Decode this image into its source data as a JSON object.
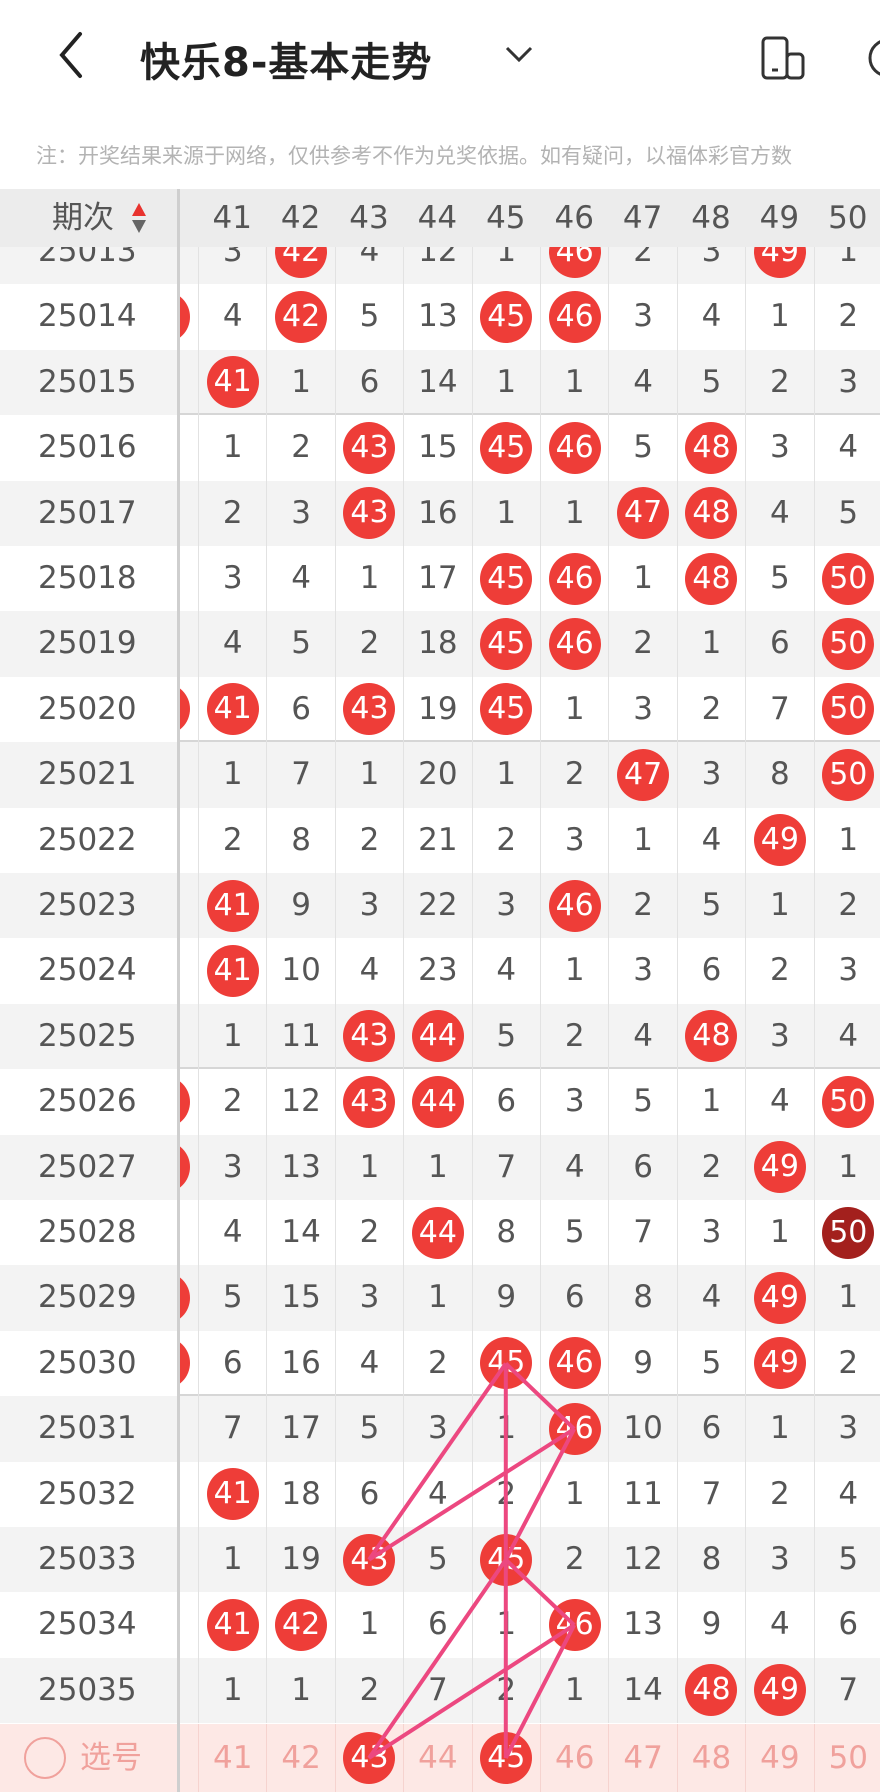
{
  "header": {
    "title": "快乐8-基本走势",
    "back_icon": "chevron-left-icon",
    "dropdown_icon": "chevron-down-icon",
    "device_icon": "phone-rotate-icon"
  },
  "notice": "注：开奖结果来源于网络，仅供参考不作为兑奖依据。如有疑问，以福体彩官方数",
  "table": {
    "period_label": "期次",
    "columns": [
      "41",
      "42",
      "43",
      "44",
      "45",
      "46",
      "47",
      "48",
      "49",
      "50"
    ],
    "rows": [
      {
        "period": "25013",
        "prev": false,
        "cells": [
          "3",
          "*42",
          "4",
          "12",
          "1",
          "*46",
          "2",
          "3",
          "*49",
          "1"
        ]
      },
      {
        "period": "25014",
        "prev": true,
        "cells": [
          "4",
          "*42",
          "5",
          "13",
          "*45",
          "*46",
          "3",
          "4",
          "1",
          "2"
        ]
      },
      {
        "period": "25015",
        "prev": false,
        "cells": [
          "*41",
          "1",
          "6",
          "14",
          "1",
          "1",
          "4",
          "5",
          "2",
          "3"
        ]
      },
      {
        "period": "25016",
        "prev": false,
        "cells": [
          "1",
          "2",
          "*43",
          "15",
          "*45",
          "*46",
          "5",
          "*48",
          "3",
          "4"
        ]
      },
      {
        "period": "25017",
        "prev": false,
        "cells": [
          "2",
          "3",
          "*43",
          "16",
          "1",
          "1",
          "*47",
          "*48",
          "4",
          "5"
        ]
      },
      {
        "period": "25018",
        "prev": false,
        "cells": [
          "3",
          "4",
          "1",
          "17",
          "*45",
          "*46",
          "1",
          "*48",
          "5",
          "*50"
        ]
      },
      {
        "period": "25019",
        "prev": false,
        "cells": [
          "4",
          "5",
          "2",
          "18",
          "*45",
          "*46",
          "2",
          "1",
          "6",
          "*50"
        ]
      },
      {
        "period": "25020",
        "prev": true,
        "cells": [
          "*41",
          "6",
          "*43",
          "19",
          "*45",
          "1",
          "3",
          "2",
          "7",
          "*50"
        ]
      },
      {
        "period": "25021",
        "prev": false,
        "cells": [
          "1",
          "7",
          "1",
          "20",
          "1",
          "2",
          "*47",
          "3",
          "8",
          "*50"
        ]
      },
      {
        "period": "25022",
        "prev": false,
        "cells": [
          "2",
          "8",
          "2",
          "21",
          "2",
          "3",
          "1",
          "4",
          "*49",
          "1"
        ]
      },
      {
        "period": "25023",
        "prev": false,
        "cells": [
          "*41",
          "9",
          "3",
          "22",
          "3",
          "*46",
          "2",
          "5",
          "1",
          "2"
        ]
      },
      {
        "period": "25024",
        "prev": false,
        "cells": [
          "*41",
          "10",
          "4",
          "23",
          "4",
          "1",
          "3",
          "6",
          "2",
          "3"
        ]
      },
      {
        "period": "25025",
        "prev": false,
        "cells": [
          "1",
          "11",
          "*43",
          "*44",
          "5",
          "2",
          "4",
          "*48",
          "3",
          "4"
        ]
      },
      {
        "period": "25026",
        "prev": true,
        "cells": [
          "2",
          "12",
          "*43",
          "*44",
          "6",
          "3",
          "5",
          "1",
          "4",
          "*50"
        ]
      },
      {
        "period": "25027",
        "prev": true,
        "cells": [
          "3",
          "13",
          "1",
          "1",
          "7",
          "4",
          "6",
          "2",
          "*49",
          "1"
        ]
      },
      {
        "period": "25028",
        "prev": false,
        "cells": [
          "4",
          "14",
          "2",
          "*44",
          "8",
          "5",
          "7",
          "3",
          "1",
          "#50"
        ]
      },
      {
        "period": "25029",
        "prev": true,
        "cells": [
          "5",
          "15",
          "3",
          "1",
          "9",
          "6",
          "8",
          "4",
          "*49",
          "1"
        ]
      },
      {
        "period": "25030",
        "prev": true,
        "cells": [
          "6",
          "16",
          "4",
          "2",
          "*45",
          "*46",
          "9",
          "5",
          "*49",
          "2"
        ]
      },
      {
        "period": "25031",
        "prev": false,
        "cells": [
          "7",
          "17",
          "5",
          "3",
          "1",
          "*46",
          "10",
          "6",
          "1",
          "3"
        ]
      },
      {
        "period": "25032",
        "prev": false,
        "cells": [
          "*41",
          "18",
          "6",
          "4",
          "2",
          "1",
          "11",
          "7",
          "2",
          "4"
        ]
      },
      {
        "period": "25033",
        "prev": false,
        "cells": [
          "1",
          "19",
          "*43",
          "5",
          "*45",
          "2",
          "12",
          "8",
          "3",
          "5"
        ]
      },
      {
        "period": "25034",
        "prev": false,
        "cells": [
          "*41",
          "*42",
          "1",
          "6",
          "1",
          "*46",
          "13",
          "9",
          "4",
          "6"
        ]
      },
      {
        "period": "25035",
        "prev": false,
        "cells": [
          "1",
          "1",
          "2",
          "7",
          "2",
          "1",
          "14",
          "*48",
          "*49",
          "7"
        ]
      }
    ],
    "select_row": {
      "label": "选号",
      "selected": [
        "43",
        "45"
      ]
    },
    "connections": [
      [
        [
          "25030",
          "45"
        ],
        [
          "25031",
          "46"
        ]
      ],
      [
        [
          "25030",
          "45"
        ],
        [
          "25033",
          "43"
        ]
      ],
      [
        [
          "25031",
          "46"
        ],
        [
          "25033",
          "43"
        ]
      ],
      [
        [
          "25030",
          "45"
        ],
        [
          "select",
          "45"
        ]
      ],
      [
        [
          "25031",
          "46"
        ],
        [
          "25033",
          "45"
        ]
      ],
      [
        [
          "25033",
          "45"
        ],
        [
          "25034",
          "46"
        ]
      ],
      [
        [
          "25033",
          "45"
        ],
        [
          "select",
          "43"
        ]
      ],
      [
        [
          "25034",
          "46"
        ],
        [
          "select",
          "43"
        ]
      ],
      [
        [
          "25034",
          "46"
        ],
        [
          "select",
          "45"
        ]
      ]
    ]
  },
  "colors": {
    "hit": "#ee3d38",
    "hit_dark": "#a3201d",
    "line": "#ec4880",
    "select_bg": "#fde8e5",
    "select_text": "#f0a19c"
  }
}
